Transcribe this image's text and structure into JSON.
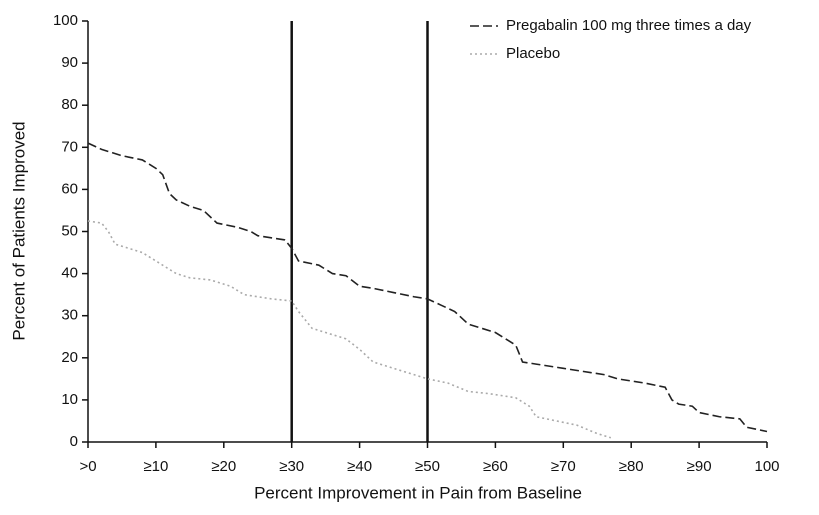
{
  "chart_data": {
    "type": "line",
    "xlabel": "Percent Improvement in Pain from Baseline",
    "ylabel": "Percent of Patients Improved",
    "xlim": [
      0,
      100
    ],
    "ylim": [
      0,
      100
    ],
    "xticks": [
      {
        "value": 0,
        "label": ">0"
      },
      {
        "value": 10,
        "label": "≥10"
      },
      {
        "value": 20,
        "label": "≥20"
      },
      {
        "value": 30,
        "label": "≥30"
      },
      {
        "value": 40,
        "label": "≥40"
      },
      {
        "value": 50,
        "label": "≥50"
      },
      {
        "value": 60,
        "label": "≥60"
      },
      {
        "value": 70,
        "label": "≥70"
      },
      {
        "value": 80,
        "label": "≥80"
      },
      {
        "value": 90,
        "label": "≥90"
      },
      100
    ],
    "yticks": [
      0,
      10,
      20,
      30,
      40,
      50,
      60,
      70,
      80,
      90,
      100
    ],
    "vlines": [
      30,
      50
    ],
    "legend": "top-right",
    "series": [
      {
        "name": "Pregabalin 100 mg three times a day",
        "color": "#222222",
        "dash": "dashed",
        "x": [
          0,
          2,
          5,
          8,
          10,
          11,
          12,
          13,
          15,
          17,
          19,
          22,
          24,
          25,
          29,
          30,
          31,
          34,
          36,
          38,
          40,
          42,
          45,
          48,
          50,
          52,
          54,
          56,
          58,
          60,
          62,
          63,
          64,
          66,
          70,
          74,
          76,
          78,
          82,
          85,
          86,
          87,
          89,
          90,
          93,
          96,
          97,
          100
        ],
        "values": [
          71,
          69.5,
          68,
          67,
          65,
          63.5,
          59,
          57.5,
          56,
          55,
          52,
          51,
          50,
          49,
          48,
          46,
          43,
          42,
          40,
          39.5,
          37,
          36.5,
          35.5,
          34.5,
          34,
          32.5,
          31,
          28,
          27,
          26,
          24,
          23,
          19,
          18.5,
          17.5,
          16.5,
          16,
          15,
          14,
          13,
          10,
          9,
          8.5,
          7,
          6,
          5.5,
          3.5,
          2.5
        ]
      },
      {
        "name": "Placebo",
        "color": "#aaaaaa",
        "dash": "dotted",
        "x": [
          0,
          2,
          3,
          4,
          6,
          8,
          10,
          11,
          13,
          15,
          18,
          21,
          23,
          27,
          30,
          31,
          32,
          33,
          35,
          38,
          40,
          42,
          45,
          48,
          50,
          53,
          56,
          59,
          63,
          65,
          66,
          69,
          72,
          75,
          77
        ],
        "values": [
          52.5,
          52,
          50,
          47,
          46,
          45,
          43,
          42,
          40,
          39,
          38.5,
          37,
          35,
          34,
          33.5,
          31,
          29,
          27,
          26,
          24.5,
          22,
          19,
          17.5,
          16,
          15,
          14,
          12,
          11.5,
          10.5,
          8.5,
          6,
          5,
          4,
          2,
          1
        ]
      }
    ]
  }
}
